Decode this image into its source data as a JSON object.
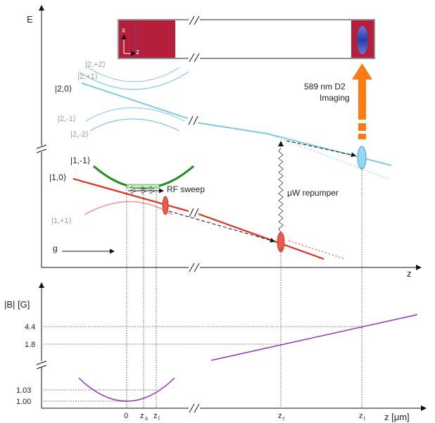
{
  "colors": {
    "f2": "#7ec8e8",
    "f1_mm": "#1f8f1f",
    "f1_0": "#e0301e",
    "f1_pp": "#f2928a",
    "bfield": "#9b30c8",
    "imaging": "#ff7a12",
    "cloud_bg": "#b51f3b"
  },
  "axes": {
    "energy_label": "E",
    "z_label_top": "z",
    "b_label": "|B| [G]",
    "z_label_bottom": "z [μm]"
  },
  "states": {
    "s22": "|2,+2⟩",
    "s21": "|2,+1⟩",
    "s20": "|2,0⟩",
    "s2m1": "|2,-1⟩",
    "s2m2": "|2,-2⟩",
    "s1m1": "|1,-1⟩",
    "s10": "|1,0⟩",
    "s1p1": "|1,+1⟩"
  },
  "annotations": {
    "rf_sweep": "RF sweep",
    "uw_repumper": "μW repumper",
    "imaging_line1": "589 nm D2",
    "imaging_line2": "Imaging",
    "gravity": "g",
    "img_x": "x",
    "img_z": "z"
  },
  "b_ticks": [
    "4.4",
    "1.8",
    "1.03",
    "1.00"
  ],
  "z_ticks": {
    "zero": "0",
    "zs_main": "z",
    "zs_sub": "s",
    "zl_main": "z",
    "zl_sub": "l",
    "zr_main": "z",
    "zr_sub": "r",
    "zi_main": "z",
    "zi_sub": "i"
  }
}
